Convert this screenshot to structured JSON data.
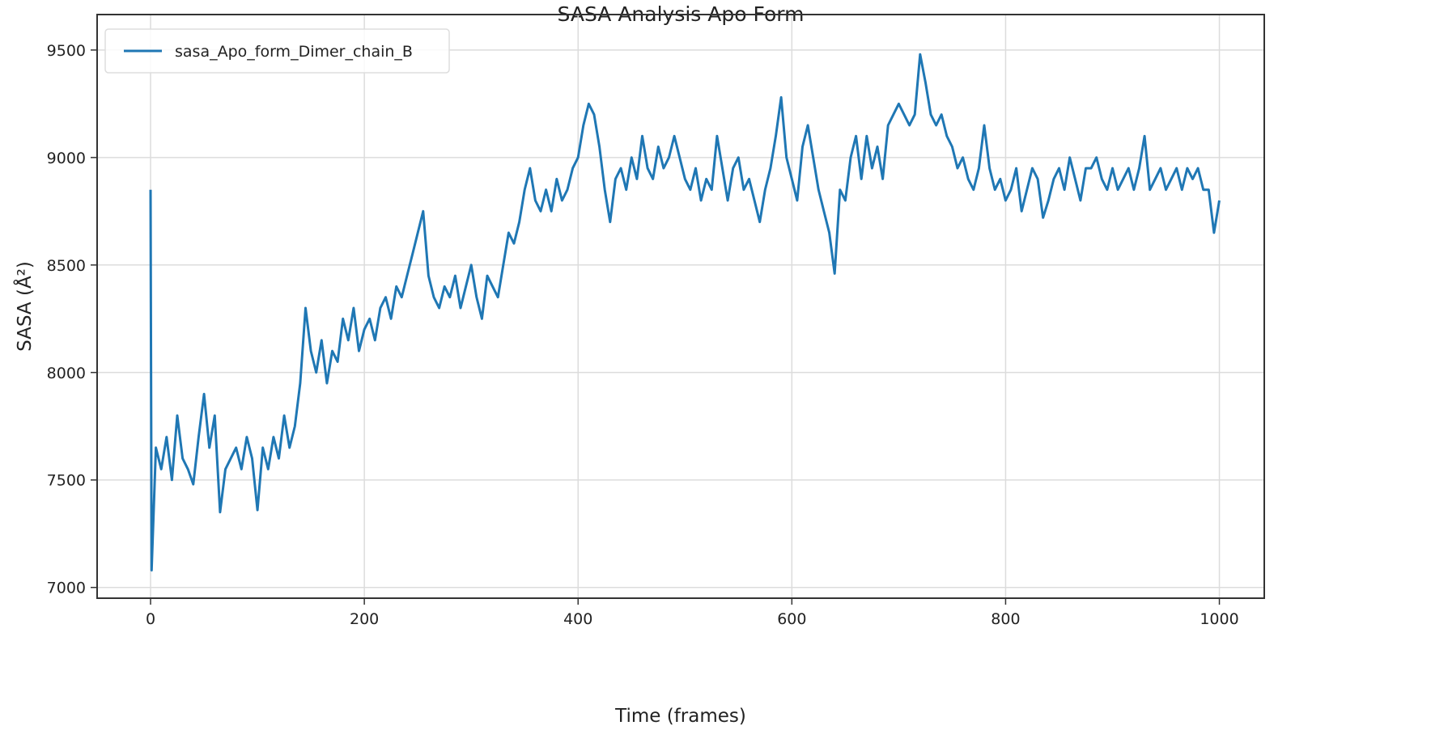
{
  "chart_data": {
    "type": "line",
    "title": "SASA Analysis Apo Form",
    "xlabel": "Time (frames)",
    "ylabel": "SASA (Å²)",
    "xlim": [
      -50,
      1042
    ],
    "ylim": [
      6950,
      9665
    ],
    "xticks": [
      0,
      200,
      400,
      600,
      800,
      1000
    ],
    "xtick_labels": [
      "0",
      "200",
      "400",
      "600",
      "800",
      "1000"
    ],
    "yticks": [
      7000,
      7500,
      8000,
      8500,
      9000,
      9500
    ],
    "ytick_labels": [
      "7000",
      "7500",
      "8000",
      "8500",
      "9000",
      "9500"
    ],
    "grid": true,
    "legend_position": "top-left",
    "series": [
      {
        "name": "sasa_Apo_form_Dimer_chain_B",
        "color": "#1f77b4",
        "x": [
          0,
          1,
          5,
          10,
          15,
          20,
          25,
          30,
          35,
          40,
          45,
          50,
          55,
          60,
          65,
          70,
          75,
          80,
          85,
          90,
          95,
          100,
          105,
          110,
          115,
          120,
          125,
          130,
          135,
          140,
          145,
          150,
          155,
          160,
          165,
          170,
          175,
          180,
          185,
          190,
          195,
          200,
          205,
          210,
          215,
          220,
          225,
          230,
          235,
          240,
          245,
          250,
          255,
          260,
          265,
          270,
          275,
          280,
          285,
          290,
          295,
          300,
          305,
          310,
          315,
          320,
          325,
          330,
          335,
          340,
          345,
          350,
          355,
          360,
          365,
          370,
          375,
          380,
          385,
          390,
          395,
          400,
          405,
          410,
          415,
          420,
          425,
          430,
          435,
          440,
          445,
          450,
          455,
          460,
          465,
          470,
          475,
          480,
          485,
          490,
          495,
          500,
          505,
          510,
          515,
          520,
          525,
          530,
          535,
          540,
          545,
          550,
          555,
          560,
          565,
          570,
          575,
          580,
          585,
          590,
          595,
          600,
          605,
          610,
          615,
          620,
          625,
          630,
          635,
          640,
          645,
          650,
          655,
          660,
          665,
          670,
          675,
          680,
          685,
          690,
          695,
          700,
          705,
          710,
          715,
          720,
          725,
          730,
          735,
          740,
          745,
          750,
          755,
          760,
          765,
          770,
          775,
          780,
          785,
          790,
          795,
          800,
          805,
          810,
          815,
          820,
          825,
          830,
          835,
          840,
          845,
          850,
          855,
          860,
          865,
          870,
          875,
          880,
          885,
          890,
          895,
          900,
          905,
          910,
          915,
          920,
          925,
          930,
          935,
          940,
          945,
          950,
          955,
          960,
          965,
          970,
          975,
          980,
          985,
          990,
          995,
          1000
        ],
        "y": [
          8850,
          7080,
          7650,
          7550,
          7700,
          7500,
          7800,
          7600,
          7550,
          7480,
          7700,
          7900,
          7650,
          7800,
          7350,
          7550,
          7600,
          7650,
          7550,
          7700,
          7600,
          7360,
          7650,
          7550,
          7700,
          7600,
          7800,
          7650,
          7750,
          7950,
          8300,
          8100,
          8000,
          8150,
          7950,
          8100,
          8050,
          8250,
          8150,
          8300,
          8100,
          8200,
          8250,
          8150,
          8300,
          8350,
          8250,
          8400,
          8350,
          8450,
          8550,
          8650,
          8750,
          8450,
          8350,
          8300,
          8400,
          8350,
          8450,
          8300,
          8400,
          8500,
          8350,
          8250,
          8450,
          8400,
          8350,
          8500,
          8650,
          8600,
          8700,
          8850,
          8950,
          8800,
          8750,
          8850,
          8750,
          8900,
          8800,
          8850,
          8950,
          9000,
          9150,
          9250,
          9200,
          9050,
          8850,
          8700,
          8900,
          8950,
          8850,
          9000,
          8900,
          9100,
          8950,
          8900,
          9050,
          8950,
          9000,
          9100,
          9000,
          8900,
          8850,
          8950,
          8800,
          8900,
          8850,
          9100,
          8950,
          8800,
          8950,
          9000,
          8850,
          8900,
          8800,
          8700,
          8850,
          8950,
          9100,
          9280,
          9000,
          8900,
          8800,
          9050,
          9150,
          9000,
          8850,
          8750,
          8650,
          8460,
          8850,
          8800,
          9000,
          9100,
          8900,
          9100,
          8950,
          9050,
          8900,
          9150,
          9200,
          9250,
          9200,
          9150,
          9200,
          9480,
          9350,
          9200,
          9150,
          9200,
          9100,
          9050,
          8950,
          9000,
          8900,
          8850,
          8950,
          9150,
          8950,
          8850,
          8900,
          8800,
          8850,
          8950,
          8750,
          8850,
          8950,
          8900,
          8720,
          8800,
          8900,
          8950,
          8850,
          9000,
          8900,
          8800,
          8950,
          8950,
          9000,
          8900,
          8850,
          8950,
          8850,
          8900,
          8950,
          8850,
          8950,
          9100,
          8850,
          8900,
          8950,
          8850,
          8900,
          8950,
          8850,
          8950,
          8900,
          8950,
          8850,
          8850,
          8650,
          8800
        ]
      }
    ]
  }
}
